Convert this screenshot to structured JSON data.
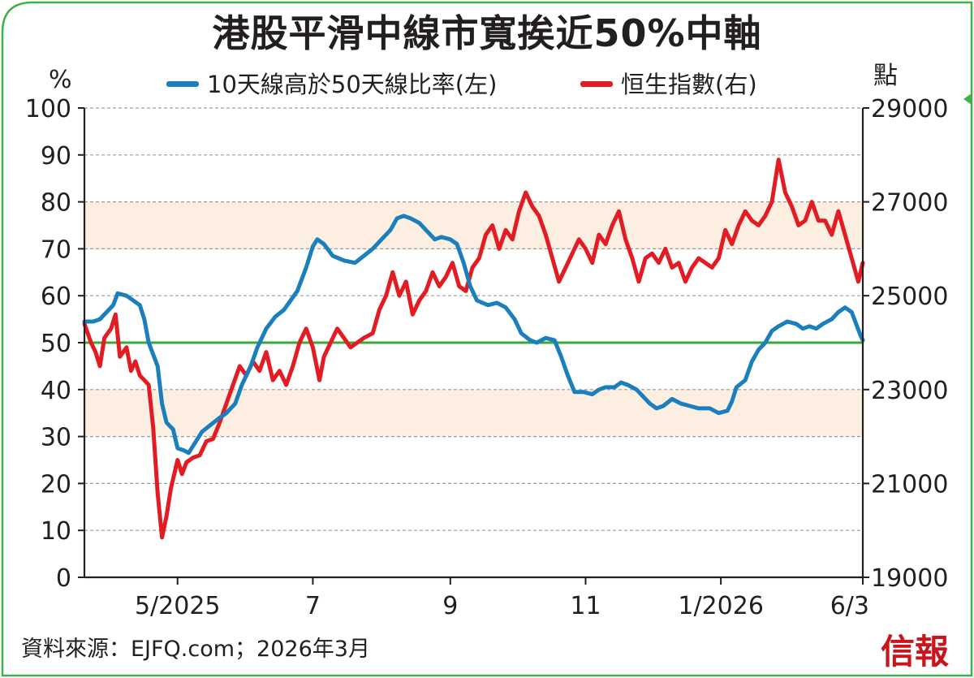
{
  "colors": {
    "frame": "#3fb14a",
    "band": "#fcefe2",
    "breadth_line": "#1b7fbd",
    "index_line": "#e31b23",
    "ref_line": "#3aa935",
    "logo": "#c8161d"
  },
  "title": "港股平滑中線市寬挨近50%中軸",
  "source": "資料來源：EJFQ.com；2026年3月",
  "logo": "信報",
  "chart_data": {
    "type": "line",
    "title": "港股平滑中線市寬挨近50%中軸",
    "legend_position": "top",
    "grid": "horizontal-dashed",
    "left_axis": {
      "unit": "%",
      "range": [
        0,
        100
      ],
      "ticks": [
        "0",
        "10",
        "20",
        "30",
        "40",
        "50",
        "60",
        "70",
        "80",
        "90",
        "100"
      ]
    },
    "right_axis": {
      "unit": "點",
      "range": [
        19000,
        29000
      ],
      "ticks": [
        "19000",
        "21000",
        "23000",
        "25000",
        "27000",
        "29000"
      ]
    },
    "x_axis": {
      "start": "2025-03-20",
      "end": "2026-03-06",
      "ticks": [
        {
          "date": "2025-05-01",
          "label": "5/2025"
        },
        {
          "date": "2025-07-01",
          "label": "7"
        },
        {
          "date": "2025-09-01",
          "label": "9"
        },
        {
          "date": "2025-11-01",
          "label": "11"
        },
        {
          "date": "2026-01-01",
          "label": "1/2026"
        },
        {
          "date": "2026-03-06",
          "label": "6/3"
        }
      ]
    },
    "shaded_bands": [
      {
        "axis": "left",
        "from": 70,
        "to": 80
      },
      {
        "axis": "left",
        "from": 30,
        "to": 40
      }
    ],
    "reference_line": {
      "axis": "left",
      "value": 50
    },
    "series": [
      {
        "name": "10天線高於50天線比率(左)",
        "axis": "left",
        "color": "#1b7fbd",
        "points": [
          [
            "2025-03-20",
            54.5
          ],
          [
            "2025-03-24",
            54.5
          ],
          [
            "2025-03-27",
            55
          ],
          [
            "2025-03-31",
            57
          ],
          [
            "2025-04-02",
            58
          ],
          [
            "2025-04-04",
            60.5
          ],
          [
            "2025-04-08",
            60
          ],
          [
            "2025-04-11",
            59
          ],
          [
            "2025-04-14",
            58
          ],
          [
            "2025-04-16",
            55
          ],
          [
            "2025-04-18",
            50
          ],
          [
            "2025-04-22",
            45
          ],
          [
            "2025-04-24",
            37
          ],
          [
            "2025-04-26",
            33
          ],
          [
            "2025-04-29",
            31.5
          ],
          [
            "2025-05-01",
            27.5
          ],
          [
            "2025-05-04",
            27
          ],
          [
            "2025-05-06",
            26.5
          ],
          [
            "2025-05-08",
            28
          ],
          [
            "2025-05-12",
            31
          ],
          [
            "2025-05-16",
            32.5
          ],
          [
            "2025-05-20",
            34
          ],
          [
            "2025-05-23",
            35
          ],
          [
            "2025-05-27",
            37
          ],
          [
            "2025-05-30",
            41
          ],
          [
            "2025-06-03",
            45
          ],
          [
            "2025-06-06",
            49
          ],
          [
            "2025-06-10",
            53
          ],
          [
            "2025-06-14",
            55.5
          ],
          [
            "2025-06-18",
            57
          ],
          [
            "2025-06-21",
            59
          ],
          [
            "2025-06-24",
            61
          ],
          [
            "2025-06-28",
            66
          ],
          [
            "2025-07-01",
            70.5
          ],
          [
            "2025-07-03",
            72
          ],
          [
            "2025-07-06",
            71
          ],
          [
            "2025-07-10",
            68.5
          ],
          [
            "2025-07-15",
            67.5
          ],
          [
            "2025-07-20",
            67
          ],
          [
            "2025-07-24",
            68.5
          ],
          [
            "2025-07-28",
            70
          ],
          [
            "2025-08-01",
            72
          ],
          [
            "2025-08-05",
            74
          ],
          [
            "2025-08-08",
            76.5
          ],
          [
            "2025-08-11",
            77
          ],
          [
            "2025-08-14",
            76.5
          ],
          [
            "2025-08-18",
            75.5
          ],
          [
            "2025-08-22",
            73.5
          ],
          [
            "2025-08-25",
            72
          ],
          [
            "2025-08-28",
            72.5
          ],
          [
            "2025-09-01",
            72
          ],
          [
            "2025-09-04",
            71
          ],
          [
            "2025-09-07",
            67
          ],
          [
            "2025-09-10",
            62
          ],
          [
            "2025-09-13",
            59
          ],
          [
            "2025-09-18",
            58
          ],
          [
            "2025-09-22",
            58.5
          ],
          [
            "2025-09-26",
            57.5
          ],
          [
            "2025-09-30",
            55
          ],
          [
            "2025-10-03",
            52
          ],
          [
            "2025-10-07",
            50.5
          ],
          [
            "2025-10-10",
            50
          ],
          [
            "2025-10-14",
            51
          ],
          [
            "2025-10-18",
            50.5
          ],
          [
            "2025-10-21",
            47
          ],
          [
            "2025-10-24",
            43
          ],
          [
            "2025-10-27",
            39.5
          ],
          [
            "2025-10-31",
            39.5
          ],
          [
            "2025-11-04",
            39
          ],
          [
            "2025-11-07",
            40
          ],
          [
            "2025-11-10",
            40.5
          ],
          [
            "2025-11-14",
            40.5
          ],
          [
            "2025-11-17",
            41.5
          ],
          [
            "2025-11-20",
            41
          ],
          [
            "2025-11-24",
            40
          ],
          [
            "2025-11-27",
            38.5
          ],
          [
            "2025-11-30",
            37
          ],
          [
            "2025-12-03",
            36
          ],
          [
            "2025-12-06",
            36.5
          ],
          [
            "2025-12-10",
            38
          ],
          [
            "2025-12-14",
            37
          ],
          [
            "2025-12-18",
            36.5
          ],
          [
            "2025-12-22",
            36
          ],
          [
            "2025-12-27",
            36
          ],
          [
            "2025-12-31",
            35
          ],
          [
            "2026-01-04",
            35.5
          ],
          [
            "2026-01-06",
            37.5
          ],
          [
            "2026-01-08",
            40.5
          ],
          [
            "2026-01-12",
            42
          ],
          [
            "2026-01-15",
            46
          ],
          [
            "2026-01-18",
            48.5
          ],
          [
            "2026-01-21",
            50
          ],
          [
            "2026-01-24",
            52.5
          ],
          [
            "2026-01-27",
            53.5
          ],
          [
            "2026-01-31",
            54.5
          ],
          [
            "2026-02-04",
            54
          ],
          [
            "2026-02-07",
            53
          ],
          [
            "2026-02-10",
            53.5
          ],
          [
            "2026-02-13",
            53
          ],
          [
            "2026-02-16",
            54
          ],
          [
            "2026-02-20",
            55
          ],
          [
            "2026-02-23",
            56.5
          ],
          [
            "2026-02-26",
            57.5
          ],
          [
            "2026-03-01",
            56.5
          ],
          [
            "2026-03-03",
            54
          ],
          [
            "2026-03-05",
            51.5
          ],
          [
            "2026-03-06",
            50.5
          ]
        ]
      },
      {
        "name": "恒生指數(右)",
        "axis": "right",
        "color": "#e31b23",
        "points": [
          [
            "2025-03-20",
            24400
          ],
          [
            "2025-03-23",
            24000
          ],
          [
            "2025-03-25",
            23800
          ],
          [
            "2025-03-27",
            23500
          ],
          [
            "2025-03-29",
            24100
          ],
          [
            "2025-04-01",
            24300
          ],
          [
            "2025-04-03",
            24600
          ],
          [
            "2025-04-05",
            23700
          ],
          [
            "2025-04-08",
            23900
          ],
          [
            "2025-04-10",
            23400
          ],
          [
            "2025-04-12",
            23600
          ],
          [
            "2025-04-14",
            23300
          ],
          [
            "2025-04-16",
            23200
          ],
          [
            "2025-04-18",
            23100
          ],
          [
            "2025-04-20",
            22200
          ],
          [
            "2025-04-22",
            20800
          ],
          [
            "2025-04-24",
            19850
          ],
          [
            "2025-04-26",
            20300
          ],
          [
            "2025-04-28",
            20900
          ],
          [
            "2025-05-01",
            21500
          ],
          [
            "2025-05-03",
            21200
          ],
          [
            "2025-05-05",
            21450
          ],
          [
            "2025-05-08",
            21550
          ],
          [
            "2025-05-11",
            21600
          ],
          [
            "2025-05-14",
            21900
          ],
          [
            "2025-05-17",
            21950
          ],
          [
            "2025-05-20",
            22300
          ],
          [
            "2025-05-23",
            22700
          ],
          [
            "2025-05-26",
            23100
          ],
          [
            "2025-05-29",
            23500
          ],
          [
            "2025-06-01",
            23300
          ],
          [
            "2025-06-04",
            23600
          ],
          [
            "2025-06-07",
            23400
          ],
          [
            "2025-06-10",
            23800
          ],
          [
            "2025-06-13",
            23200
          ],
          [
            "2025-06-16",
            23400
          ],
          [
            "2025-06-19",
            23100
          ],
          [
            "2025-06-22",
            23500
          ],
          [
            "2025-06-25",
            24000
          ],
          [
            "2025-06-28",
            24300
          ],
          [
            "2025-07-01",
            23900
          ],
          [
            "2025-07-04",
            23200
          ],
          [
            "2025-07-06",
            23700
          ],
          [
            "2025-07-09",
            24000
          ],
          [
            "2025-07-12",
            24300
          ],
          [
            "2025-07-15",
            24100
          ],
          [
            "2025-07-18",
            23900
          ],
          [
            "2025-07-21",
            24000
          ],
          [
            "2025-07-24",
            24100
          ],
          [
            "2025-07-28",
            24200
          ],
          [
            "2025-07-31",
            24700
          ],
          [
            "2025-08-03",
            25000
          ],
          [
            "2025-08-06",
            25500
          ],
          [
            "2025-08-09",
            25000
          ],
          [
            "2025-08-12",
            25300
          ],
          [
            "2025-08-15",
            24600
          ],
          [
            "2025-08-18",
            24900
          ],
          [
            "2025-08-21",
            25100
          ],
          [
            "2025-08-24",
            25500
          ],
          [
            "2025-08-27",
            25200
          ],
          [
            "2025-08-30",
            25400
          ],
          [
            "2025-09-02",
            25700
          ],
          [
            "2025-09-05",
            25200
          ],
          [
            "2025-09-08",
            25100
          ],
          [
            "2025-09-11",
            25600
          ],
          [
            "2025-09-14",
            25800
          ],
          [
            "2025-09-17",
            26300
          ],
          [
            "2025-09-20",
            26500
          ],
          [
            "2025-09-23",
            26000
          ],
          [
            "2025-09-26",
            26400
          ],
          [
            "2025-09-29",
            26200
          ],
          [
            "2025-10-02",
            26800
          ],
          [
            "2025-10-05",
            27200
          ],
          [
            "2025-10-08",
            26900
          ],
          [
            "2025-10-11",
            26700
          ],
          [
            "2025-10-14",
            26300
          ],
          [
            "2025-10-17",
            25800
          ],
          [
            "2025-10-20",
            25300
          ],
          [
            "2025-10-23",
            25600
          ],
          [
            "2025-10-26",
            25900
          ],
          [
            "2025-10-29",
            26200
          ],
          [
            "2025-11-01",
            26000
          ],
          [
            "2025-11-04",
            25700
          ],
          [
            "2025-11-07",
            26300
          ],
          [
            "2025-11-10",
            26100
          ],
          [
            "2025-11-13",
            26500
          ],
          [
            "2025-11-16",
            26800
          ],
          [
            "2025-11-19",
            26200
          ],
          [
            "2025-11-22",
            25800
          ],
          [
            "2025-11-25",
            25300
          ],
          [
            "2025-11-28",
            25800
          ],
          [
            "2025-12-01",
            25900
          ],
          [
            "2025-12-04",
            25700
          ],
          [
            "2025-12-07",
            26000
          ],
          [
            "2025-12-10",
            25600
          ],
          [
            "2025-12-13",
            25700
          ],
          [
            "2025-12-16",
            25300
          ],
          [
            "2025-12-19",
            25600
          ],
          [
            "2025-12-22",
            25800
          ],
          [
            "2025-12-25",
            25700
          ],
          [
            "2025-12-28",
            25600
          ],
          [
            "2025-12-31",
            25800
          ],
          [
            "2026-01-03",
            26400
          ],
          [
            "2026-01-06",
            26100
          ],
          [
            "2026-01-09",
            26500
          ],
          [
            "2026-01-12",
            26800
          ],
          [
            "2026-01-15",
            26600
          ],
          [
            "2026-01-18",
            26500
          ],
          [
            "2026-01-21",
            26700
          ],
          [
            "2026-01-24",
            27000
          ],
          [
            "2026-01-27",
            27900
          ],
          [
            "2026-01-30",
            27200
          ],
          [
            "2026-02-02",
            26900
          ],
          [
            "2026-02-05",
            26500
          ],
          [
            "2026-02-08",
            26600
          ],
          [
            "2026-02-11",
            27000
          ],
          [
            "2026-02-14",
            26600
          ],
          [
            "2026-02-17",
            26600
          ],
          [
            "2026-02-20",
            26300
          ],
          [
            "2026-02-23",
            26800
          ],
          [
            "2026-02-26",
            26300
          ],
          [
            "2026-03-01",
            25800
          ],
          [
            "2026-03-04",
            25300
          ],
          [
            "2026-03-06",
            25700
          ]
        ]
      }
    ]
  }
}
